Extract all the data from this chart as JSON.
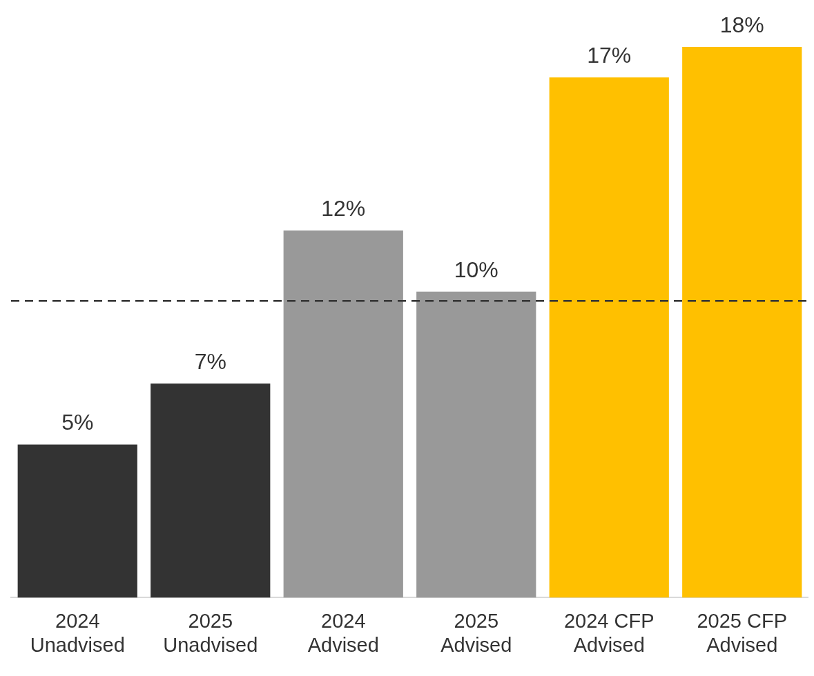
{
  "chart_data": {
    "type": "bar",
    "categories": [
      "2024 Unadvised",
      "2025 Unadvised",
      "2024 Advised",
      "2025 Advised",
      "2024 CFP Advised",
      "2025 CFP Advised"
    ],
    "values": [
      5,
      7,
      12,
      10,
      17,
      18
    ],
    "colors": [
      "#333333",
      "#333333",
      "#999999",
      "#999999",
      "#ffc000",
      "#ffc000"
    ],
    "value_labels": [
      "5%",
      "7%",
      "12%",
      "10%",
      "17%",
      "18%"
    ],
    "ref_lines": [
      {
        "axis": "y",
        "value": 9.7,
        "color": "#333333",
        "line_style": "dashed"
      }
    ],
    "relative": false,
    "grid": false,
    "legend": false
  }
}
